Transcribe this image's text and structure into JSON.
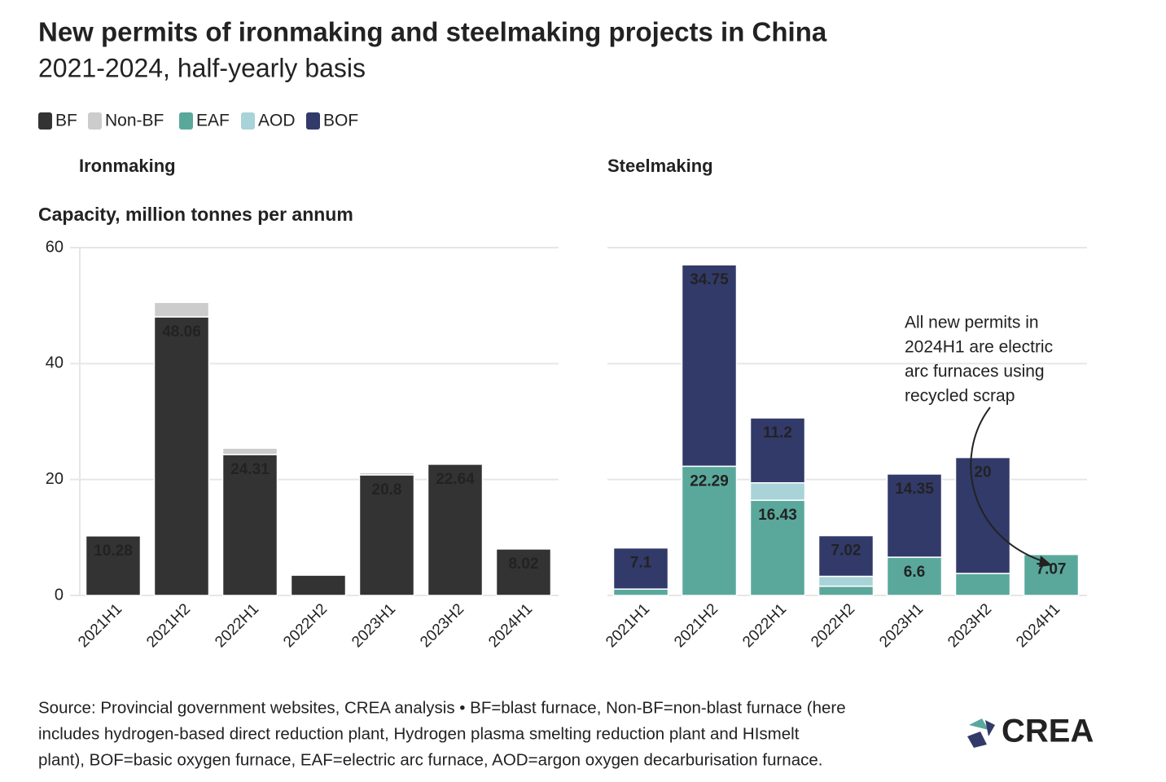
{
  "title": "New permits of ironmaking and steelmaking projects in China",
  "subtitle": "2021-2024, half-yearly basis",
  "source": [
    "Source: Provincial government websites, CREA analysis • BF=blast furnace, Non-BF=non-blast furnace (here",
    "includes hydrogen-based direct reduction plant, Hydrogen plasma smelting reduction plant and HIsmelt",
    "plant), BOF=basic oxygen furnace, EAF=electric arc furnace, AOD=argon oxygen decarburisation furnace."
  ],
  "logo": "CREA",
  "chart_data": [
    {
      "type": "stacked_bar",
      "title": "Ironmaking",
      "ylabel": "Capacity, million tonnes per annum",
      "categories": [
        "2021H1",
        "2021H2",
        "2022H1",
        "2022H2",
        "2023H1",
        "2023H2",
        "2024H1"
      ],
      "series": [
        {
          "name": "BF",
          "color": "#333333",
          "values": [
            10.28,
            48.06,
            24.31,
            3.5,
            20.8,
            22.64,
            8.02
          ],
          "value_labels": [
            "10.28",
            "48.06",
            "24.31",
            null,
            "20.8",
            "22.64",
            "8.02"
          ]
        },
        {
          "name": "Non-BF",
          "color": "#cccccc",
          "values": [
            0,
            2.5,
            1.1,
            0,
            0.4,
            0,
            0
          ]
        }
      ],
      "ylim": [
        0,
        60
      ],
      "yticks": [
        0,
        20,
        40,
        60
      ],
      "grid": true,
      "show_ytick_labels": true
    },
    {
      "type": "stacked_bar",
      "title": "Steelmaking",
      "categories": [
        "2021H1",
        "2021H2",
        "2022H1",
        "2022H2",
        "2023H1",
        "2023H2",
        "2024H1"
      ],
      "series": [
        {
          "name": "EAF",
          "color": "#5aa89c",
          "values": [
            1.1,
            22.29,
            16.43,
            1.6,
            6.6,
            3.8,
            7.07
          ],
          "value_labels": [
            null,
            "22.29",
            "16.43",
            null,
            "6.6",
            null,
            "7.07"
          ]
        },
        {
          "name": "AOD",
          "color": "#a8d3d8",
          "values": [
            0,
            0,
            3.0,
            1.7,
            0,
            0,
            0
          ]
        },
        {
          "name": "BOF",
          "color": "#323a6a",
          "values": [
            7.1,
            34.75,
            11.2,
            7.02,
            14.35,
            20,
            0
          ],
          "value_labels": [
            "7.1",
            "34.75",
            "11.2",
            "7.02",
            "14.35",
            "20",
            null
          ]
        }
      ],
      "annotation": [
        "All new permits in",
        "2024H1 are electric",
        "arc furnaces using",
        "recycled scrap"
      ],
      "ylim": [
        0,
        60
      ],
      "yticks": [
        0,
        20,
        40,
        60
      ],
      "grid": true,
      "show_ytick_labels": false
    }
  ]
}
